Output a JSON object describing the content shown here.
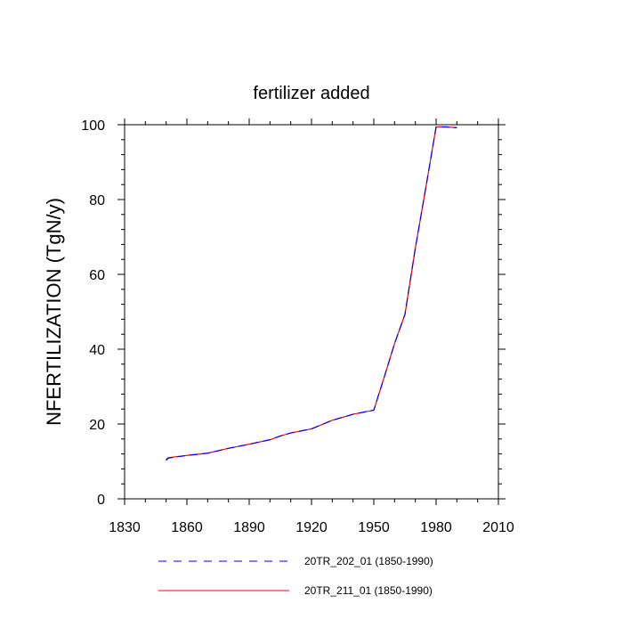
{
  "chart_data": {
    "type": "line",
    "title": "fertilizer added",
    "xlabel": "",
    "ylabel": "NFERTILIZATION  (TgN/y)",
    "xlim": [
      1830,
      2010
    ],
    "ylim": [
      0,
      100
    ],
    "x_ticks": [
      1830,
      1860,
      1890,
      1920,
      1950,
      1980,
      2010
    ],
    "y_ticks": [
      0,
      20,
      40,
      60,
      80,
      100
    ],
    "grid": false,
    "legend_position": "bottom",
    "series": [
      {
        "name": "20TR_202_01 (1850-1990)",
        "color": "#0000ff",
        "style": "dashed",
        "x": [
          1850,
          1851,
          1860,
          1870,
          1880,
          1890,
          1900,
          1905,
          1910,
          1920,
          1930,
          1940,
          1950,
          1955,
          1960,
          1965,
          1970,
          1975,
          1980,
          1985,
          1990
        ],
        "y": [
          10.2,
          10.9,
          11.6,
          12.2,
          13.5,
          14.6,
          15.8,
          16.8,
          17.6,
          18.7,
          21.0,
          22.6,
          23.7,
          32.5,
          41.5,
          49.3,
          67.0,
          83.0,
          99.4,
          99.4,
          99.2
        ]
      },
      {
        "name": "20TR_211_01 (1850-1990)",
        "color": "#ff0000",
        "style": "solid",
        "x": [
          1850,
          1851,
          1860,
          1870,
          1880,
          1890,
          1900,
          1905,
          1910,
          1920,
          1930,
          1940,
          1950,
          1955,
          1960,
          1965,
          1970,
          1975,
          1980,
          1985,
          1990
        ],
        "y": [
          10.6,
          11.0,
          11.6,
          12.2,
          13.5,
          14.6,
          15.8,
          16.8,
          17.6,
          18.7,
          21.0,
          22.6,
          23.7,
          32.5,
          41.5,
          49.3,
          67.0,
          83.0,
          99.4,
          99.4,
          99.2
        ]
      }
    ]
  }
}
